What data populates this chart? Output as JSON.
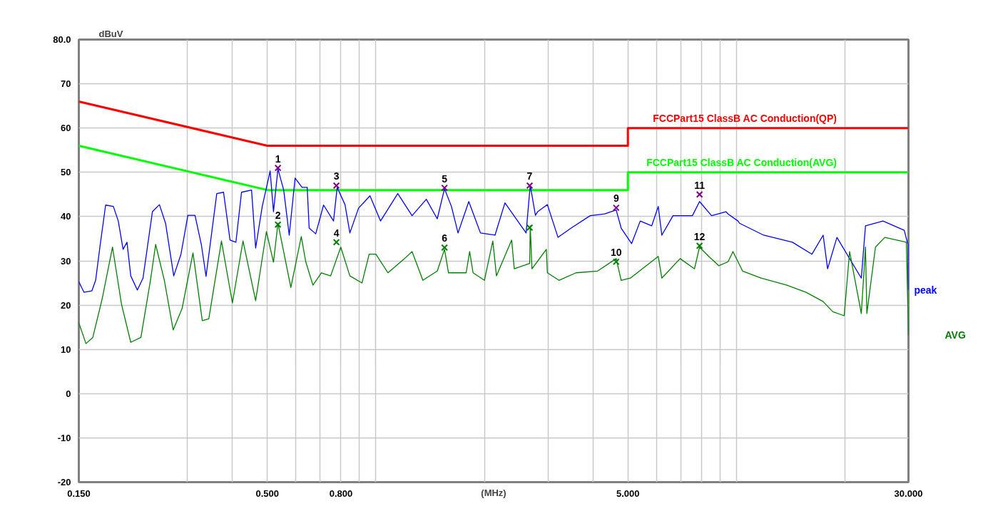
{
  "chart_data": {
    "type": "line",
    "xlabel": "(MHz)",
    "ylabel": "dBuV",
    "log": "x",
    "grid": true,
    "xlim": [
      0.15,
      30
    ],
    "ylim": [
      -20,
      80
    ],
    "xticks": [
      {
        "value": 0.15,
        "label": "0.150"
      },
      {
        "value": 0.3,
        "label": null
      },
      {
        "value": 0.4,
        "label": null
      },
      {
        "value": 0.5,
        "label": "0.500"
      },
      {
        "value": 0.6,
        "label": null
      },
      {
        "value": 0.7,
        "label": null
      },
      {
        "value": 0.8,
        "label": "0.800"
      },
      {
        "value": 0.9,
        "label": null
      },
      {
        "value": 1,
        "label": null
      },
      {
        "value": 2,
        "label": null
      },
      {
        "value": 3,
        "label": null
      },
      {
        "value": 4,
        "label": null
      },
      {
        "value": 5,
        "label": "5.000"
      },
      {
        "value": 6,
        "label": null
      },
      {
        "value": 7,
        "label": null
      },
      {
        "value": 8,
        "label": null
      },
      {
        "value": 9,
        "label": null
      },
      {
        "value": 10,
        "label": null
      },
      {
        "value": 20,
        "label": null
      },
      {
        "value": 30,
        "label": "30.000"
      }
    ],
    "yticks": [
      {
        "value": 80,
        "label": "80.0"
      },
      70,
      60,
      50,
      40,
      30,
      20,
      10,
      0,
      -10,
      -20
    ],
    "series": [
      {
        "name": "FCCPart15 ClassB AC Conduction(QP)",
        "color": "#ff0000",
        "x": [
          0.15,
          0.5,
          5,
          5,
          30
        ],
        "values": [
          66,
          56,
          56,
          60,
          60
        ]
      },
      {
        "name": "FCCPart15 ClassB AC Conduction(AVG)",
        "color": "#00ff00",
        "x": [
          0.15,
          0.5,
          5,
          5,
          30
        ],
        "values": [
          56,
          46,
          46,
          50,
          50
        ]
      },
      {
        "name": "peak",
        "color": "#0000ff",
        "x": [
          0.15,
          0.155,
          0.163,
          0.167,
          0.172,
          0.178,
          0.187,
          0.193,
          0.199,
          0.204,
          0.209,
          0.218,
          0.226,
          0.24,
          0.251,
          0.261,
          0.275,
          0.288,
          0.301,
          0.315,
          0.328,
          0.338,
          0.362,
          0.378,
          0.394,
          0.409,
          0.424,
          0.452,
          0.464,
          0.484,
          0.509,
          0.52,
          0.535,
          0.555,
          0.575,
          0.597,
          0.624,
          0.645,
          0.653,
          0.681,
          0.716,
          0.763,
          0.781,
          0.821,
          0.847,
          0.895,
          0.963,
          1.03,
          1.15,
          1.26,
          1.38,
          1.48,
          1.55,
          1.62,
          1.69,
          1.81,
          1.95,
          2.14,
          2.28,
          2.61,
          2.68,
          2.77,
          2.81,
          2.99,
          3.2,
          3.48,
          3.93,
          4.31,
          4.64,
          4.79,
          5.12,
          5.41,
          5.82,
          6.07,
          6.21,
          6.67,
          7.55,
          7.9,
          8.53,
          9.35,
          9.48,
          10.1,
          10.2,
          11.9,
          14.3,
          16.2,
          17.4,
          17.9,
          19.0,
          22.2,
          22.8,
          25.5,
          29.2,
          29.9,
          30.0
        ],
        "values": [
          25.3,
          22.9,
          23.2,
          25.6,
          33.7,
          42.6,
          42.3,
          39.0,
          32.6,
          34.2,
          26.6,
          23.4,
          26.1,
          41.1,
          42.7,
          38.5,
          26.6,
          31.5,
          40.3,
          40.3,
          33.7,
          26.5,
          45.2,
          45.5,
          34.7,
          34.2,
          45.5,
          46.0,
          32.9,
          42.3,
          50.3,
          41.1,
          50.8,
          46.0,
          35.8,
          48.7,
          46.6,
          46.6,
          37.4,
          36.1,
          42.6,
          39.0,
          46.6,
          42.7,
          36.3,
          41.9,
          44.7,
          39.0,
          45.2,
          40.2,
          43.9,
          39.5,
          46.3,
          42.3,
          36.3,
          43.4,
          36.3,
          35.8,
          43.1,
          36.3,
          47.1,
          40.3,
          41.1,
          42.7,
          35.3,
          37.4,
          40.2,
          40.6,
          41.5,
          37.4,
          33.9,
          39.0,
          37.9,
          42.3,
          35.8,
          40.2,
          40.2,
          43.4,
          40.2,
          41.1,
          40.6,
          39.0,
          38.5,
          35.8,
          34.2,
          31.5,
          35.8,
          28.2,
          35.3,
          26.1,
          37.9,
          39.0,
          36.9,
          33.7,
          23.4
        ]
      },
      {
        "name": "AVG",
        "color": "#008000",
        "x": [
          0.15,
          0.157,
          0.164,
          0.174,
          0.186,
          0.197,
          0.209,
          0.223,
          0.237,
          0.245,
          0.259,
          0.274,
          0.29,
          0.311,
          0.33,
          0.344,
          0.373,
          0.4,
          0.428,
          0.464,
          0.497,
          0.52,
          0.535,
          0.581,
          0.621,
          0.639,
          0.669,
          0.706,
          0.749,
          0.799,
          0.847,
          0.915,
          0.958,
          1.0,
          1.08,
          1.2,
          1.26,
          1.35,
          1.48,
          1.55,
          1.59,
          1.78,
          1.82,
          1.86,
          2.0,
          2.11,
          2.16,
          2.38,
          2.42,
          2.67,
          2.68,
          2.71,
          2.97,
          2.99,
          3.22,
          3.59,
          4.12,
          4.64,
          4.79,
          5.08,
          6.07,
          6.21,
          6.98,
          7.65,
          7.9,
          8.38,
          8.93,
          9.48,
          9.78,
          10.4,
          11.7,
          13.8,
          15.6,
          17.4,
          18.5,
          19.9,
          20.6,
          22.2,
          22.8,
          23.0,
          24.3,
          25.8,
          29.6,
          30.0
        ],
        "values": [
          16.0,
          11.3,
          12.7,
          21.3,
          33.1,
          20.2,
          11.6,
          12.7,
          25.6,
          33.7,
          25.6,
          14.4,
          19.2,
          31.8,
          16.5,
          16.9,
          34.5,
          20.5,
          34.5,
          21.0,
          36.6,
          29.7,
          38.5,
          24.0,
          35.5,
          29.8,
          24.5,
          27.3,
          26.6,
          33.1,
          26.6,
          25.0,
          31.5,
          31.5,
          27.3,
          30.5,
          32.1,
          25.6,
          27.7,
          32.6,
          27.3,
          27.3,
          32.1,
          27.3,
          25.6,
          34.5,
          26.6,
          34.7,
          28.2,
          29.4,
          37.9,
          28.2,
          32.6,
          27.3,
          25.6,
          27.3,
          27.7,
          30.5,
          25.6,
          26.1,
          31.0,
          26.1,
          30.5,
          28.2,
          33.1,
          31.0,
          28.9,
          29.8,
          32.1,
          27.7,
          26.1,
          24.5,
          22.9,
          20.8,
          18.5,
          17.6,
          32.1,
          18.1,
          33.1,
          18.1,
          33.1,
          35.3,
          34.2,
          13.2
        ]
      },
      {
        "type": "scatter",
        "marker": "cross",
        "color": "#800080",
        "x": [
          0.535,
          0.777,
          1.55,
          2.67,
          4.64,
          7.9
        ],
        "values": [
          51.0,
          47.0,
          46.5,
          47.0,
          42.0,
          45.0
        ]
      },
      {
        "type": "scatter",
        "marker": "cross",
        "color": "#008000",
        "x": [
          0.535,
          0.777,
          1.55,
          2.67,
          4.64,
          7.9
        ],
        "values": [
          38.2,
          34.2,
          33.0,
          37.5,
          29.8,
          33.4
        ]
      }
    ],
    "annotations": [
      {
        "text": "1",
        "x": 0.535,
        "y": 51.0
      },
      {
        "text": "2",
        "x": 0.535,
        "y": 38.2
      },
      {
        "text": "3",
        "x": 0.777,
        "y": 47.0
      },
      {
        "text": "4",
        "x": 0.777,
        "y": 34.2
      },
      {
        "text": "5",
        "x": 1.55,
        "y": 46.5
      },
      {
        "text": "6",
        "x": 1.55,
        "y": 33.0
      },
      {
        "text": "7",
        "x": 2.67,
        "y": 47.0
      },
      {
        "text": "9",
        "x": 4.64,
        "y": 42.0
      },
      {
        "text": "10",
        "x": 4.64,
        "y": 29.8
      },
      {
        "text": "11",
        "x": 7.9,
        "y": 45.0
      },
      {
        "text": "12",
        "x": 7.9,
        "y": 33.4
      }
    ]
  }
}
